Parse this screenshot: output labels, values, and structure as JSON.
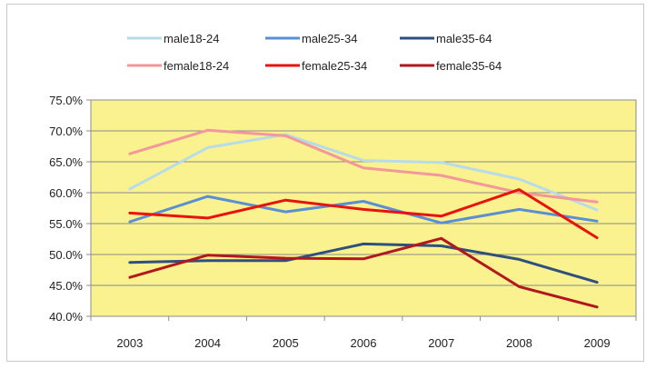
{
  "chart_data": {
    "type": "line",
    "title": "",
    "xlabel": "",
    "ylabel": "",
    "categories": [
      "2003",
      "2004",
      "2005",
      "2006",
      "2007",
      "2008",
      "2009"
    ],
    "ylim": [
      40.0,
      75.0
    ],
    "y_ticks": [
      "40.0%",
      "45.0%",
      "50.0%",
      "55.0%",
      "60.0%",
      "65.0%",
      "70.0%",
      "75.0%"
    ],
    "y_tick_values": [
      40,
      45,
      50,
      55,
      60,
      65,
      70,
      75
    ],
    "grid": true,
    "legend_position": "top",
    "plot_background": "#f9f28f",
    "series": [
      {
        "name": "male18-24",
        "color": "#b7dbe8",
        "values": [
          60.6,
          67.3,
          69.4,
          65.2,
          64.9,
          62.2,
          57.2
        ]
      },
      {
        "name": "male25-34",
        "color": "#5b8fd4",
        "values": [
          55.3,
          59.4,
          56.9,
          58.6,
          55.1,
          57.3,
          55.4
        ]
      },
      {
        "name": "male35-64",
        "color": "#2f4f7f",
        "values": [
          48.7,
          49.0,
          49.0,
          51.7,
          51.4,
          49.2,
          45.5
        ]
      },
      {
        "name": "female18-24",
        "color": "#f4979a",
        "values": [
          66.3,
          70.1,
          69.2,
          64.0,
          62.8,
          60.0,
          58.5
        ]
      },
      {
        "name": "female25-34",
        "color": "#e8130f",
        "values": [
          56.7,
          55.9,
          58.8,
          57.3,
          56.2,
          60.5,
          52.7
        ]
      },
      {
        "name": "female35-64",
        "color": "#b3161e",
        "values": [
          46.3,
          49.9,
          49.4,
          49.3,
          52.6,
          44.8,
          41.5
        ]
      }
    ]
  }
}
